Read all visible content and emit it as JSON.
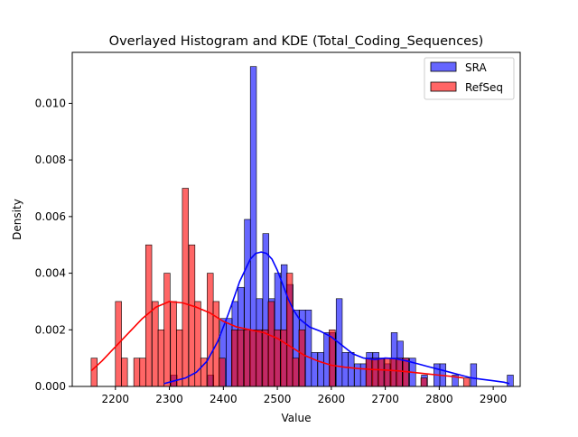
{
  "chart_data": {
    "type": "histogram",
    "title": "Overlayed Histogram and KDE (Total_Coding_Sequences)",
    "xlabel": "Value",
    "ylabel": "Density",
    "xlim": [
      2120,
      2950
    ],
    "ylim": [
      0,
      0.0118
    ],
    "xticks": [
      2200,
      2300,
      2400,
      2500,
      2600,
      2700,
      2800,
      2900
    ],
    "yticks": [
      0.0,
      0.002,
      0.004,
      0.006,
      0.008,
      0.01
    ],
    "ytick_labels": [
      "0.000",
      "0.002",
      "0.004",
      "0.006",
      "0.008",
      "0.010"
    ],
    "legend_position": "top-right",
    "grid": false,
    "bin_width": 11.3,
    "series": [
      {
        "name": "SRA",
        "color": "#0000ff",
        "bins": [
          [
            2303,
            0.0004
          ],
          [
            2371,
            0.0004
          ],
          [
            2394,
            0.0024
          ],
          [
            2405,
            0.0024
          ],
          [
            2416,
            0.003
          ],
          [
            2427,
            0.0035
          ],
          [
            2439,
            0.0059
          ],
          [
            2450,
            0.0113
          ],
          [
            2461,
            0.0031
          ],
          [
            2473,
            0.0054
          ],
          [
            2484,
            0.0031
          ],
          [
            2495,
            0.004
          ],
          [
            2507,
            0.0043
          ],
          [
            2518,
            0.0036
          ],
          [
            2529,
            0.0027
          ],
          [
            2541,
            0.0027
          ],
          [
            2552,
            0.0027
          ],
          [
            2563,
            0.0012
          ],
          [
            2575,
            0.0012
          ],
          [
            2586,
            0.0019
          ],
          [
            2597,
            0.0019
          ],
          [
            2609,
            0.0031
          ],
          [
            2620,
            0.0012
          ],
          [
            2631,
            0.0012
          ],
          [
            2643,
            0.0008
          ],
          [
            2654,
            0.0008
          ],
          [
            2665,
            0.0012
          ],
          [
            2677,
            0.0012
          ],
          [
            2688,
            0.001
          ],
          [
            2699,
            0.0008
          ],
          [
            2711,
            0.0019
          ],
          [
            2722,
            0.0016
          ],
          [
            2733,
            0.001
          ],
          [
            2745,
            0.001
          ],
          [
            2767,
            0.0004
          ],
          [
            2790,
            0.0008
          ],
          [
            2801,
            0.0008
          ],
          [
            2824,
            0.0004
          ],
          [
            2858,
            0.0008
          ],
          [
            2926,
            0.0004
          ]
        ],
        "kde_x": [
          2290,
          2310,
          2330,
          2350,
          2370,
          2390,
          2410,
          2430,
          2450,
          2460,
          2470,
          2480,
          2490,
          2500,
          2510,
          2520,
          2530,
          2540,
          2560,
          2580,
          2600,
          2620,
          2640,
          2660,
          2680,
          2700,
          2720,
          2740,
          2760,
          2780,
          2800,
          2820,
          2840,
          2860,
          2880,
          2900,
          2920,
          2930
        ],
        "kde_y": [
          0.0001,
          0.0002,
          0.0003,
          0.0005,
          0.0009,
          0.0016,
          0.0026,
          0.0037,
          0.0045,
          0.0047,
          0.00475,
          0.0047,
          0.0045,
          0.0041,
          0.0036,
          0.0031,
          0.0027,
          0.0024,
          0.0021,
          0.00195,
          0.00175,
          0.00145,
          0.00115,
          0.001,
          0.00095,
          0.001,
          0.00098,
          0.0009,
          0.0008,
          0.0007,
          0.0006,
          0.0005,
          0.0004,
          0.0003,
          0.00025,
          0.0002,
          0.00015,
          0.0001
        ]
      },
      {
        "name": "RefSeq",
        "color": "#ff0000",
        "bins": [
          [
            2155,
            0.001
          ],
          [
            2200,
            0.003
          ],
          [
            2211,
            0.001
          ],
          [
            2234,
            0.001
          ],
          [
            2245,
            0.001
          ],
          [
            2256,
            0.005
          ],
          [
            2268,
            0.003
          ],
          [
            2279,
            0.002
          ],
          [
            2290,
            0.004
          ],
          [
            2302,
            0.003
          ],
          [
            2313,
            0.002
          ],
          [
            2324,
            0.007
          ],
          [
            2336,
            0.005
          ],
          [
            2347,
            0.003
          ],
          [
            2358,
            0.001
          ],
          [
            2370,
            0.004
          ],
          [
            2381,
            0.003
          ],
          [
            2392,
            0.001
          ],
          [
            2415,
            0.002
          ],
          [
            2426,
            0.002
          ],
          [
            2438,
            0.002
          ],
          [
            2449,
            0.002
          ],
          [
            2460,
            0.002
          ],
          [
            2472,
            0.002
          ],
          [
            2483,
            0.003
          ],
          [
            2494,
            0.002
          ],
          [
            2506,
            0.002
          ],
          [
            2517,
            0.004
          ],
          [
            2528,
            0.001
          ],
          [
            2540,
            0.002
          ],
          [
            2596,
            0.002
          ],
          [
            2664,
            0.001
          ],
          [
            2675,
            0.001
          ],
          [
            2686,
            0.001
          ],
          [
            2698,
            0.001
          ],
          [
            2709,
            0.001
          ],
          [
            2720,
            0.001
          ],
          [
            2732,
            0.001
          ],
          [
            2766,
            0.0003
          ],
          [
            2845,
            0.0003
          ]
        ],
        "kde_x": [
          2155,
          2175,
          2200,
          2225,
          2250,
          2275,
          2300,
          2325,
          2350,
          2375,
          2400,
          2425,
          2450,
          2475,
          2500,
          2525,
          2550,
          2575,
          2600,
          2625,
          2650,
          2675,
          2700,
          2725,
          2750,
          2775,
          2800,
          2825,
          2845
        ],
        "kde_y": [
          0.00055,
          0.0009,
          0.0014,
          0.0019,
          0.0024,
          0.0028,
          0.003,
          0.00295,
          0.0028,
          0.0026,
          0.0023,
          0.0021,
          0.002,
          0.0019,
          0.0017,
          0.0014,
          0.0011,
          0.0009,
          0.00075,
          0.00068,
          0.00063,
          0.0006,
          0.00058,
          0.00055,
          0.0005,
          0.00045,
          0.0004,
          0.00035,
          0.0003
        ]
      }
    ]
  }
}
